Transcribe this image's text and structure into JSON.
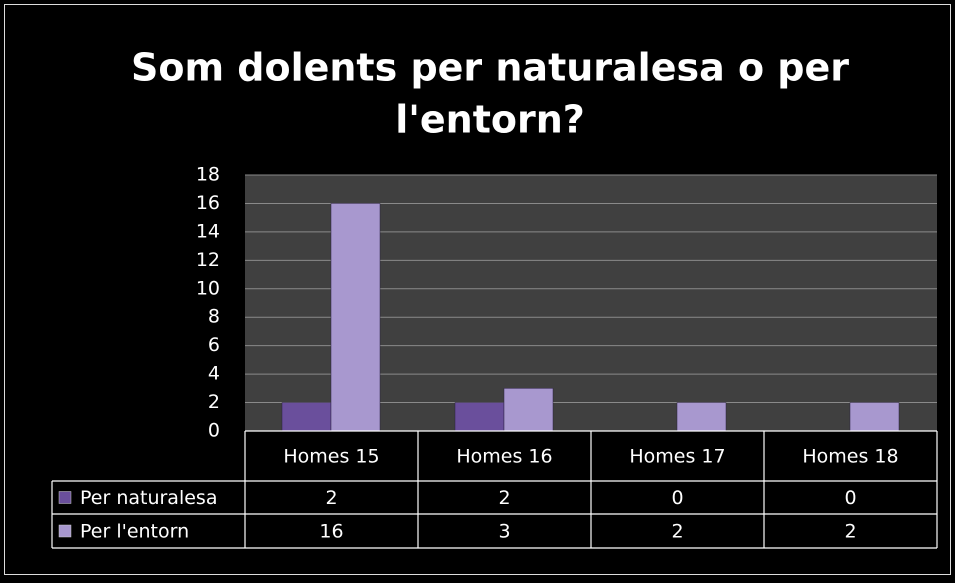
{
  "chart_data": {
    "type": "bar",
    "title": [
      "Som dolents per naturalesa o per",
      "l'entorn?"
    ],
    "categories": [
      "Homes 15",
      "Homes 16",
      "Homes 17",
      "Homes 18"
    ],
    "series": [
      {
        "name": "Per naturalesa",
        "color": "#6a4f9c",
        "values": [
          2,
          2,
          0,
          0
        ]
      },
      {
        "name": "Per l'entorn",
        "color": "#a898cf",
        "values": [
          16,
          3,
          2,
          2
        ]
      }
    ],
    "ylim": [
      0,
      18
    ],
    "yticks": [
      0,
      2,
      4,
      6,
      8,
      10,
      12,
      14,
      16,
      18
    ],
    "grid": true
  }
}
